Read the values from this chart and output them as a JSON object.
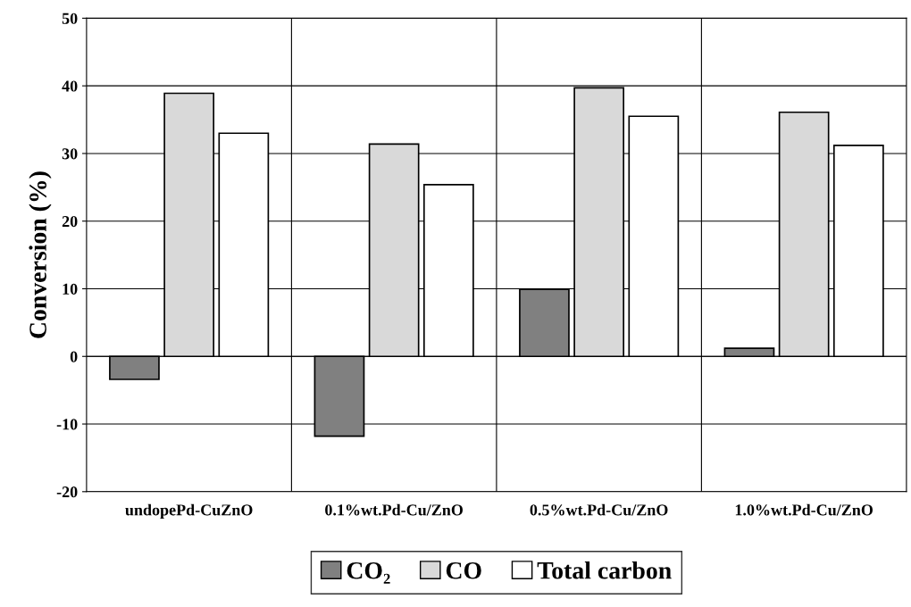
{
  "chart_data": {
    "type": "bar",
    "ylabel": "Conversion (%)",
    "categories": [
      "undopePd-CuZnO",
      "0.1%wt.Pd-Cu/ZnO",
      "0.5%wt.Pd-Cu/ZnO",
      "1.0%wt.Pd-Cu/ZnO"
    ],
    "series": [
      {
        "name": "CO₂",
        "color": "#808080",
        "values": [
          -3.4,
          -11.8,
          9.9,
          1.2
        ]
      },
      {
        "name": "CO",
        "color": "#d9d9d9",
        "values": [
          38.9,
          31.4,
          39.7,
          36.1
        ]
      },
      {
        "name": "Total carbon",
        "color": "#ffffff",
        "values": [
          33.0,
          25.4,
          35.5,
          31.2
        ]
      }
    ],
    "ylim": [
      -20,
      50
    ],
    "yticks": [
      -20,
      -10,
      0,
      10,
      20,
      30,
      40,
      50
    ],
    "grid": "y",
    "legend": "bottom"
  }
}
